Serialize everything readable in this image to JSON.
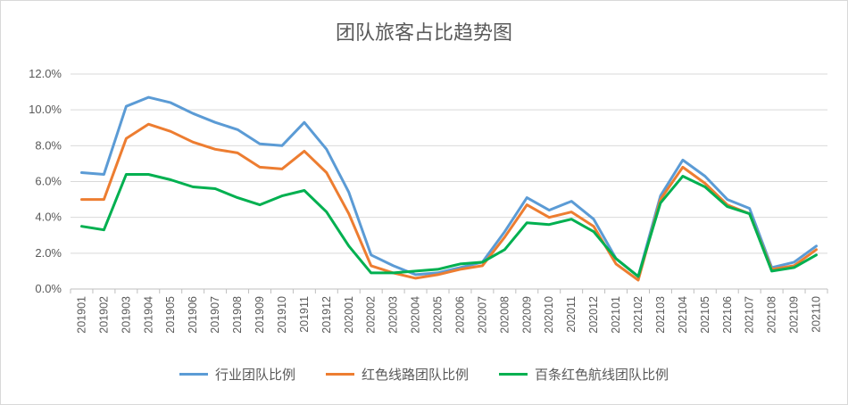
{
  "chart_data": {
    "type": "line",
    "title": "团队旅客占比趋势图",
    "xlabel": "",
    "ylabel": "",
    "ylim": [
      0,
      0.12
    ],
    "y_tick_labels": [
      "0.0%",
      "2.0%",
      "4.0%",
      "6.0%",
      "8.0%",
      "10.0%",
      "12.0%"
    ],
    "grid": true,
    "legend_position": "bottom",
    "categories": [
      "201901",
      "201902",
      "201903",
      "201904",
      "201905",
      "201906",
      "201907",
      "201908",
      "201909",
      "201910",
      "201911",
      "201912",
      "202001",
      "202002",
      "202003",
      "202004",
      "202005",
      "202006",
      "202007",
      "202008",
      "202009",
      "202010",
      "202011",
      "202012",
      "202101",
      "202102",
      "202103",
      "202104",
      "202105",
      "202106",
      "202107",
      "202108",
      "202109",
      "202110"
    ],
    "series": [
      {
        "name": "行业团队比例",
        "color": "#5b9bd5",
        "values": [
          0.065,
          0.064,
          0.102,
          0.107,
          0.104,
          0.098,
          0.093,
          0.089,
          0.081,
          0.08,
          0.093,
          0.078,
          0.054,
          0.019,
          0.013,
          0.008,
          0.009,
          0.012,
          0.015,
          0.032,
          0.051,
          0.044,
          0.049,
          0.039,
          0.017,
          0.007,
          0.052,
          0.072,
          0.063,
          0.05,
          0.045,
          0.012,
          0.015,
          0.024
        ]
      },
      {
        "name": "红色线路团队比例",
        "color": "#ed7d31",
        "values": [
          0.05,
          0.05,
          0.084,
          0.092,
          0.088,
          0.082,
          0.078,
          0.076,
          0.068,
          0.067,
          0.077,
          0.065,
          0.042,
          0.013,
          0.009,
          0.006,
          0.008,
          0.011,
          0.013,
          0.029,
          0.047,
          0.04,
          0.043,
          0.035,
          0.014,
          0.005,
          0.05,
          0.068,
          0.059,
          0.047,
          0.042,
          0.011,
          0.013,
          0.022
        ]
      },
      {
        "name": "百条红色航线团队比例",
        "color": "#00b050",
        "values": [
          0.035,
          0.033,
          0.064,
          0.064,
          0.061,
          0.057,
          0.056,
          0.051,
          0.047,
          0.052,
          0.055,
          0.043,
          0.024,
          0.009,
          0.009,
          0.01,
          0.011,
          0.014,
          0.015,
          0.022,
          0.037,
          0.036,
          0.039,
          0.032,
          0.017,
          0.007,
          0.048,
          0.063,
          0.057,
          0.046,
          0.042,
          0.01,
          0.012,
          0.019
        ]
      }
    ]
  }
}
